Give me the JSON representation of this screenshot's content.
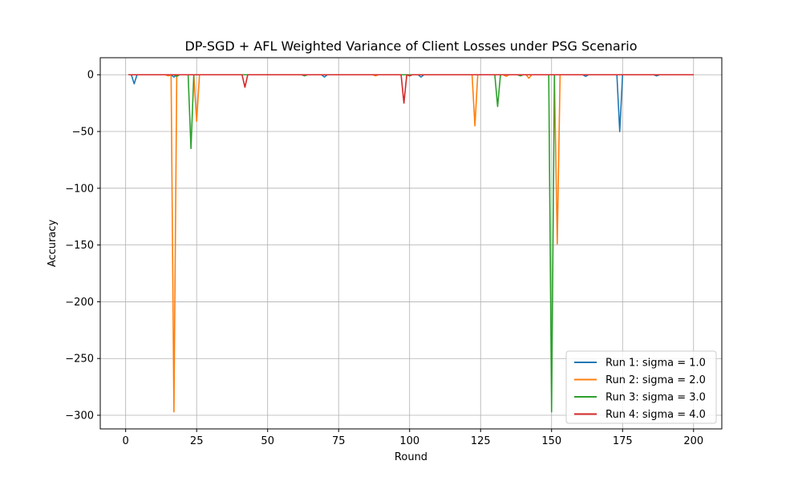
{
  "chart_data": {
    "type": "line",
    "title": "DP-SGD + AFL Weighted Variance of Client Losses under PSG Scenario",
    "xlabel": "Round",
    "ylabel": "Accuracy",
    "xlim": [
      -8.95,
      209.95
    ],
    "ylim": [
      -312,
      15
    ],
    "xticks": [
      0,
      25,
      50,
      75,
      100,
      125,
      150,
      175,
      200
    ],
    "yticks": [
      0,
      -50,
      -100,
      -150,
      -200,
      -250,
      -300
    ],
    "grid": true,
    "legend_position": "lower-right",
    "baseline": 0,
    "series": [
      {
        "name": "Run 1: sigma = 1.0",
        "color": "#1f77b4",
        "spikes": [
          [
            3,
            -8
          ],
          [
            17,
            -2
          ],
          [
            70,
            -2
          ],
          [
            104,
            -2
          ],
          [
            162,
            -1.5
          ],
          [
            174,
            -50
          ],
          [
            187,
            -1
          ]
        ]
      },
      {
        "name": "Run 2: sigma = 2.0",
        "color": "#ff7f0e",
        "spikes": [
          [
            15,
            -1
          ],
          [
            17,
            -297
          ],
          [
            25,
            -41
          ],
          [
            88,
            -1
          ],
          [
            123,
            -45
          ],
          [
            134,
            -1.5
          ],
          [
            142,
            -3
          ],
          [
            152,
            -149
          ]
        ]
      },
      {
        "name": "Run 3: sigma = 3.0",
        "color": "#2ca02c",
        "spikes": [
          [
            18,
            -1.5
          ],
          [
            23,
            -65
          ],
          [
            63,
            -1
          ],
          [
            131,
            -28
          ],
          [
            139,
            -1
          ],
          [
            150,
            -297
          ]
        ]
      },
      {
        "name": "Run 4: sigma = 4.0",
        "color": "#d62728",
        "spikes": [
          [
            42,
            -11
          ],
          [
            98,
            -25
          ],
          [
            100,
            -1
          ]
        ]
      }
    ]
  }
}
